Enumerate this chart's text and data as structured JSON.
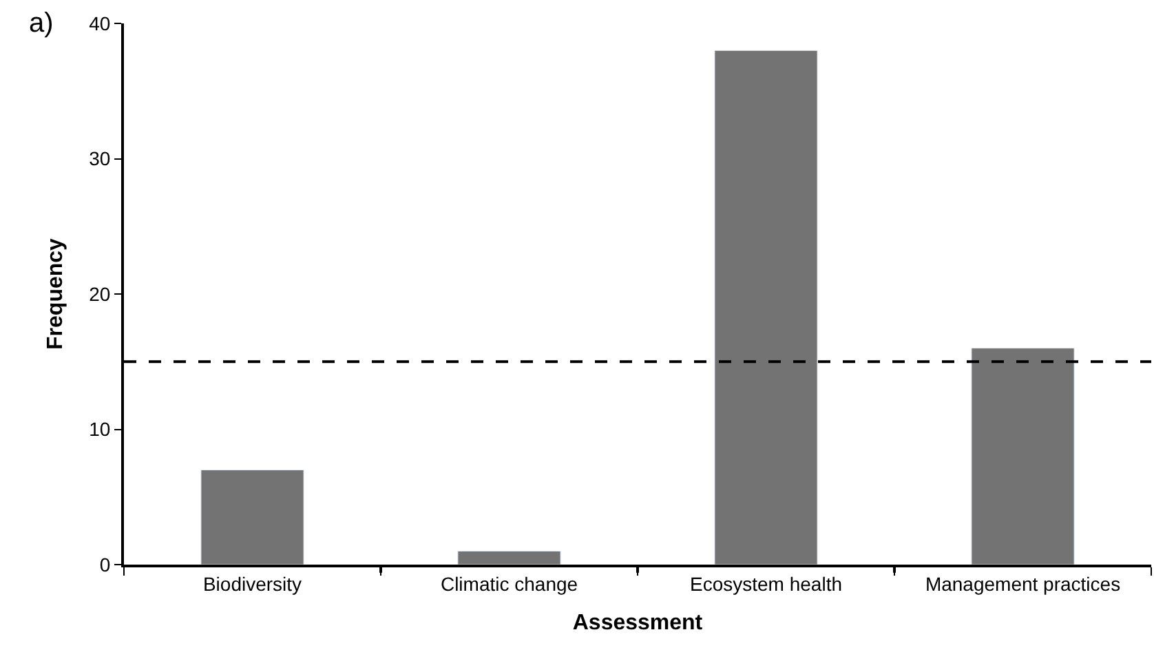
{
  "chart_data": {
    "type": "bar",
    "xlabel": "Assessment",
    "ylabel": "Frequency",
    "categories": [
      "Biodiversity",
      "Climatic change",
      "Ecosystem health",
      "Management practices"
    ],
    "values": [
      7,
      1,
      38,
      16
    ],
    "color": "#737373",
    "ylim": [
      0,
      40
    ],
    "yticks": [
      0,
      10,
      20,
      30,
      40
    ],
    "ref_lines": [
      {
        "axis": "y",
        "value": 15,
        "label": null,
        "color": "#000000",
        "line_style": "dashed"
      }
    ],
    "annotations": [
      "a)"
    ]
  }
}
